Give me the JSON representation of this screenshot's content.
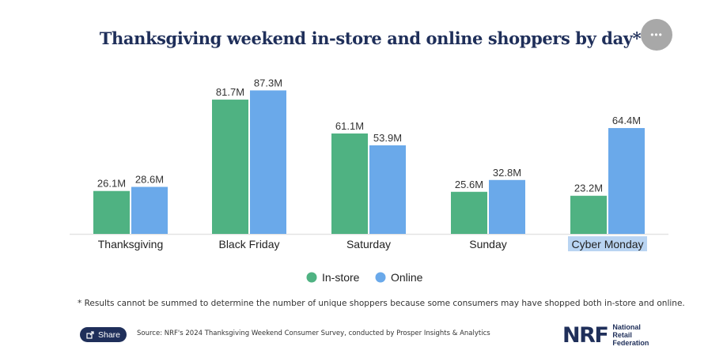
{
  "chart_data": {
    "type": "bar",
    "title": "Thanksgiving weekend in-store and online shoppers by day*",
    "categories": [
      "Thanksgiving",
      "Black Friday",
      "Saturday",
      "Sunday",
      "Cyber Monday"
    ],
    "series": [
      {
        "name": "In-store",
        "color": "#4fb282",
        "values": [
          26.1,
          81.7,
          61.1,
          25.6,
          23.2
        ],
        "labels": [
          "26.1M",
          "81.7M",
          "61.1M",
          "25.6M",
          "23.2M"
        ]
      },
      {
        "name": "Online",
        "color": "#6aa9ea",
        "values": [
          28.6,
          87.3,
          53.9,
          32.8,
          64.4
        ],
        "labels": [
          "28.6M",
          "87.3M",
          "53.9M",
          "32.8M",
          "64.4M"
        ]
      }
    ],
    "ylim": [
      0,
      100
    ],
    "highlighted_category": "Cyber Monday",
    "legend_position": "bottom-center",
    "grid": false
  },
  "footnote": "* Results cannot be summed to determine the number of unique shoppers because some consumers may have shopped both in-store and online.",
  "share_label": "Share",
  "source": "Source: NRF's 2024 Thanksgiving Weekend Consumer Survey, conducted by Prosper Insights & Analytics",
  "logo": {
    "mark": "NRF",
    "line1": "National",
    "line2": "Retail",
    "line3": "Federation"
  },
  "more_icon": "•••"
}
